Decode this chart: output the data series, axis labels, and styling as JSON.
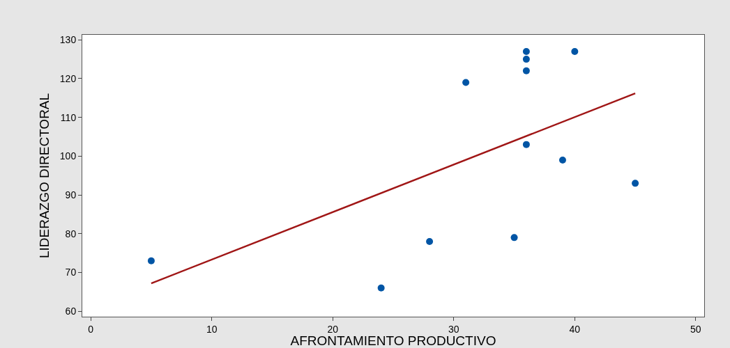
{
  "chart_data": {
    "type": "scatter",
    "xlabel": "AFRONTAMIENTO PRODUCTIVO",
    "ylabel": "LIDERAZGO DIRECTORAL",
    "x": [
      5,
      24,
      28,
      31,
      35,
      36,
      36,
      36,
      36,
      39,
      40,
      45
    ],
    "series": [
      {
        "color": "#0055a5",
        "marker": "circle",
        "values": [
          73,
          66,
          78,
          119,
          79,
          127,
          125,
          122,
          103,
          99,
          127,
          93
        ]
      },
      {
        "type": "line",
        "marker": "none",
        "color": "#a01616",
        "x": [
          5,
          45
        ],
        "values": [
          67.2,
          116.2
        ]
      }
    ],
    "xlim": [
      -0.7,
      50.7
    ],
    "ylim": [
      58.6,
      131.3
    ],
    "xticks": [
      0,
      10,
      20,
      30,
      40,
      50
    ],
    "yticks": [
      60,
      70,
      80,
      90,
      100,
      110,
      120,
      130
    ],
    "grid": false
  }
}
